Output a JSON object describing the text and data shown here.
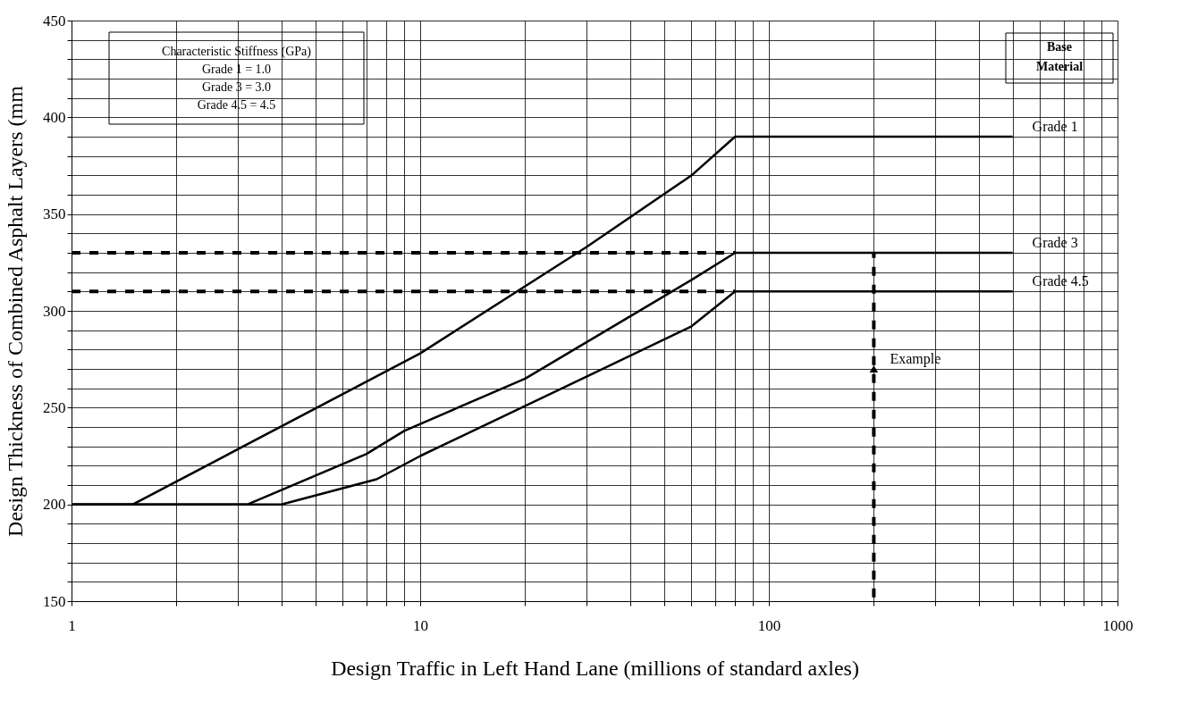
{
  "chart_data": {
    "type": "line",
    "xlabel": "Design Traffic in Left Hand Lane (millions of standard axles)",
    "ylabel": "Design Thickness of Combined Asphalt Layers (mm",
    "log": "x",
    "grid": true,
    "legend": false,
    "marker": "none",
    "xlim": [
      1,
      1000
    ],
    "ylim": [
      150,
      450
    ],
    "xticks": [
      1,
      {
        "value": 2,
        "label": null
      },
      {
        "value": 3,
        "label": null
      },
      {
        "value": 4,
        "label": null
      },
      {
        "value": 5,
        "label": null
      },
      {
        "value": 6,
        "label": null
      },
      {
        "value": 7,
        "label": null
      },
      {
        "value": 8,
        "label": null
      },
      {
        "value": 9,
        "label": null
      },
      10,
      {
        "value": 20,
        "label": null
      },
      {
        "value": 30,
        "label": null
      },
      {
        "value": 40,
        "label": null
      },
      {
        "value": 50,
        "label": null
      },
      {
        "value": 60,
        "label": null
      },
      {
        "value": 70,
        "label": null
      },
      {
        "value": 80,
        "label": null
      },
      {
        "value": 90,
        "label": null
      },
      100,
      {
        "value": 200,
        "label": null
      },
      {
        "value": 300,
        "label": null
      },
      {
        "value": 400,
        "label": null
      },
      {
        "value": 500,
        "label": null
      },
      {
        "value": 600,
        "label": null
      },
      {
        "value": 700,
        "label": null
      },
      {
        "value": 800,
        "label": null
      },
      {
        "value": 900,
        "label": null
      },
      1000
    ],
    "yticks": [
      150,
      {
        "value": 160,
        "label": null
      },
      {
        "value": 170,
        "label": null
      },
      {
        "value": 180,
        "label": null
      },
      {
        "value": 190,
        "label": null
      },
      200,
      {
        "value": 210,
        "label": null
      },
      {
        "value": 220,
        "label": null
      },
      {
        "value": 230,
        "label": null
      },
      {
        "value": 240,
        "label": null
      },
      250,
      {
        "value": 260,
        "label": null
      },
      {
        "value": 270,
        "label": null
      },
      {
        "value": 280,
        "label": null
      },
      {
        "value": 290,
        "label": null
      },
      300,
      {
        "value": 310,
        "label": null
      },
      {
        "value": 320,
        "label": null
      },
      {
        "value": 330,
        "label": null
      },
      {
        "value": 340,
        "label": null
      },
      350,
      {
        "value": 360,
        "label": null
      },
      {
        "value": 370,
        "label": null
      },
      {
        "value": 380,
        "label": null
      },
      {
        "value": 390,
        "label": null
      },
      400,
      {
        "value": 410,
        "label": null
      },
      {
        "value": 420,
        "label": null
      },
      {
        "value": 430,
        "label": null
      },
      {
        "value": 440,
        "label": null
      },
      450
    ],
    "series": [
      {
        "name": "Grade 1",
        "color": "#000000",
        "line_style": "solid",
        "x": [
          1,
          1.5,
          10,
          30,
          60,
          80,
          500
        ],
        "values": [
          200,
          200,
          278,
          333,
          370,
          390,
          390
        ]
      },
      {
        "name": "Grade 3",
        "color": "#000000",
        "line_style": "solid",
        "x": [
          1,
          3.2,
          7,
          9,
          20,
          60,
          80,
          500
        ],
        "values": [
          200,
          200,
          226,
          238,
          265,
          316,
          330,
          330
        ]
      },
      {
        "name": "Grade 4.5",
        "color": "#000000",
        "line_style": "solid",
        "x": [
          1,
          4,
          7.5,
          10,
          30,
          60,
          80,
          500
        ],
        "values": [
          200,
          200,
          213,
          225,
          266,
          292,
          310,
          310
        ]
      },
      {
        "color": "#000000",
        "line_style": "dashed",
        "x": [
          1,
          80
        ],
        "values": [
          330,
          330
        ]
      },
      {
        "color": "#000000",
        "line_style": "dashed",
        "x": [
          1,
          80
        ],
        "values": [
          310,
          310
        ]
      },
      {
        "color": "#000000",
        "line_style": "dashed",
        "x": [
          200,
          200
        ],
        "values": [
          152,
          330
        ]
      }
    ],
    "annotations": [
      "Characteristic Stiffness (GPa)\nGrade 1 = 1.0\nGrade 3 = 3.0\nGrade 4.5 = 4.5",
      "Base\nMaterial",
      {
        "text": "Example",
        "x": 200,
        "y": 270
      }
    ]
  }
}
